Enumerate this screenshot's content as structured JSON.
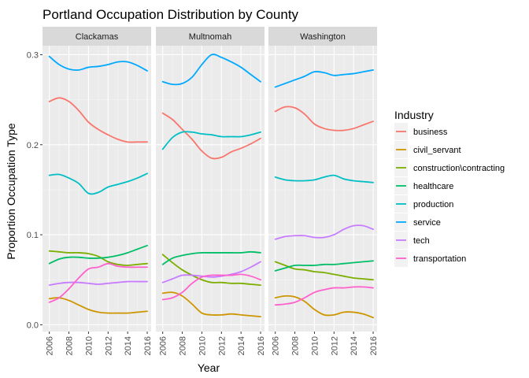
{
  "chart_data": {
    "type": "line",
    "title": "Portland Occupation Distribution by County",
    "xlabel": "Year",
    "ylabel": "Proportion Occupation Type",
    "xlim": [
      2005.3,
      2016.4
    ],
    "ylim": [
      -0.0075,
      0.31
    ],
    "x_ticks": [
      2006,
      2008,
      2010,
      2012,
      2014,
      2016
    ],
    "y_ticks": [
      0.0,
      0.1,
      0.2,
      0.3
    ],
    "y_tick_labels": [
      "0.0",
      "0.1",
      "0.2",
      "0.3"
    ],
    "grid": true,
    "legend_placement": "right",
    "legend_title": "Industry",
    "x": [
      2006,
      2007,
      2008,
      2009,
      2010,
      2011,
      2012,
      2013,
      2014,
      2015,
      2016
    ],
    "industries": [
      {
        "name": "business",
        "color": "#F8766D"
      },
      {
        "name": "civil_servant",
        "color": "#CD9600"
      },
      {
        "name": "construction\\contracting",
        "color": "#7CAE00"
      },
      {
        "name": "healthcare",
        "color": "#00BE67"
      },
      {
        "name": "production",
        "color": "#00BFC4"
      },
      {
        "name": "service",
        "color": "#00A9FF"
      },
      {
        "name": "tech",
        "color": "#C77CFF"
      },
      {
        "name": "transportation",
        "color": "#FF61CC"
      }
    ],
    "panels": [
      {
        "name": "Clackamas",
        "series": {
          "business": [
            0.248,
            0.252,
            0.248,
            0.238,
            0.225,
            0.217,
            0.211,
            0.206,
            0.203,
            0.203,
            0.203
          ],
          "civil_servant": [
            0.029,
            0.03,
            0.027,
            0.022,
            0.017,
            0.014,
            0.013,
            0.013,
            0.013,
            0.014,
            0.015
          ],
          "construction\\contracting": [
            0.082,
            0.081,
            0.08,
            0.08,
            0.079,
            0.076,
            0.07,
            0.067,
            0.066,
            0.067,
            0.068
          ],
          "healthcare": [
            0.068,
            0.073,
            0.075,
            0.075,
            0.074,
            0.074,
            0.075,
            0.077,
            0.08,
            0.084,
            0.088
          ],
          "production": [
            0.166,
            0.167,
            0.163,
            0.157,
            0.146,
            0.147,
            0.153,
            0.156,
            0.159,
            0.163,
            0.168
          ],
          "service": [
            0.298,
            0.289,
            0.284,
            0.283,
            0.286,
            0.287,
            0.289,
            0.292,
            0.292,
            0.288,
            0.282
          ],
          "tech": [
            0.044,
            0.046,
            0.047,
            0.047,
            0.046,
            0.045,
            0.046,
            0.047,
            0.048,
            0.048,
            0.048
          ],
          "transportation": [
            0.025,
            0.03,
            0.04,
            0.052,
            0.062,
            0.064,
            0.068,
            0.065,
            0.064,
            0.064,
            0.064
          ]
        }
      },
      {
        "name": "Multnomah",
        "series": {
          "business": [
            0.235,
            0.228,
            0.217,
            0.206,
            0.193,
            0.185,
            0.186,
            0.192,
            0.196,
            0.201,
            0.207
          ],
          "civil_servant": [
            0.035,
            0.036,
            0.032,
            0.023,
            0.013,
            0.011,
            0.011,
            0.012,
            0.011,
            0.01,
            0.009
          ],
          "construction\\contracting": [
            0.078,
            0.069,
            0.061,
            0.055,
            0.05,
            0.047,
            0.047,
            0.046,
            0.046,
            0.045,
            0.044
          ],
          "healthcare": [
            0.067,
            0.074,
            0.077,
            0.079,
            0.08,
            0.08,
            0.08,
            0.08,
            0.08,
            0.081,
            0.08
          ],
          "production": [
            0.195,
            0.208,
            0.214,
            0.214,
            0.212,
            0.211,
            0.209,
            0.209,
            0.209,
            0.211,
            0.214
          ],
          "service": [
            0.27,
            0.267,
            0.268,
            0.275,
            0.289,
            0.3,
            0.297,
            0.292,
            0.286,
            0.278,
            0.27
          ],
          "tech": [
            0.047,
            0.051,
            0.055,
            0.055,
            0.054,
            0.053,
            0.054,
            0.056,
            0.059,
            0.064,
            0.07
          ],
          "transportation": [
            0.028,
            0.03,
            0.036,
            0.046,
            0.053,
            0.055,
            0.055,
            0.055,
            0.056,
            0.054,
            0.05
          ]
        }
      },
      {
        "name": "Washington",
        "series": {
          "business": [
            0.237,
            0.242,
            0.241,
            0.234,
            0.223,
            0.218,
            0.216,
            0.216,
            0.218,
            0.222,
            0.226
          ],
          "civil_servant": [
            0.03,
            0.032,
            0.031,
            0.026,
            0.017,
            0.011,
            0.011,
            0.014,
            0.014,
            0.012,
            0.008
          ],
          "construction\\contracting": [
            0.07,
            0.066,
            0.062,
            0.061,
            0.059,
            0.058,
            0.056,
            0.054,
            0.052,
            0.051,
            0.05
          ],
          "healthcare": [
            0.06,
            0.063,
            0.066,
            0.066,
            0.066,
            0.067,
            0.067,
            0.068,
            0.069,
            0.07,
            0.071
          ],
          "production": [
            0.164,
            0.161,
            0.16,
            0.16,
            0.161,
            0.164,
            0.166,
            0.162,
            0.16,
            0.159,
            0.158
          ],
          "service": [
            0.264,
            0.268,
            0.272,
            0.276,
            0.281,
            0.28,
            0.277,
            0.278,
            0.279,
            0.281,
            0.283
          ],
          "tech": [
            0.095,
            0.098,
            0.099,
            0.099,
            0.097,
            0.097,
            0.1,
            0.106,
            0.11,
            0.11,
            0.106
          ],
          "transportation": [
            0.022,
            0.023,
            0.025,
            0.03,
            0.036,
            0.039,
            0.041,
            0.041,
            0.042,
            0.042,
            0.041
          ]
        }
      }
    ]
  }
}
